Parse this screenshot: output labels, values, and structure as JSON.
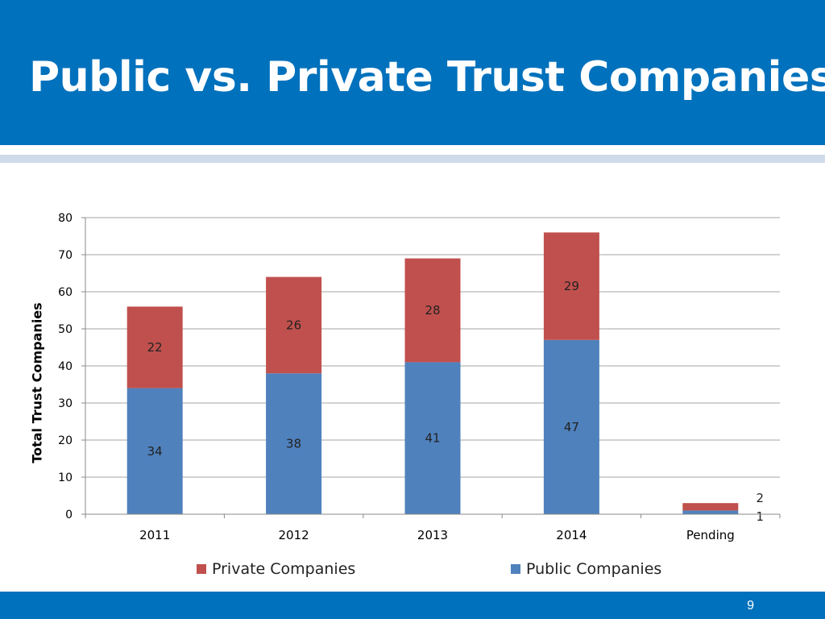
{
  "slide": {
    "title": "Public vs. Private Trust Companies",
    "page_number": "9"
  },
  "colors": {
    "header": "#0071bc",
    "private": "#c0504d",
    "public": "#4f81bd"
  },
  "chart_data": {
    "type": "bar",
    "stacked": true,
    "categories": [
      "2011",
      "2012",
      "2013",
      "2014",
      "Pending"
    ],
    "series": [
      {
        "name": "Public Companies",
        "values": [
          34,
          38,
          41,
          47,
          1
        ],
        "color": "#4f81bd"
      },
      {
        "name": "Private Companies",
        "values": [
          22,
          26,
          28,
          29,
          2
        ],
        "color": "#c0504d"
      }
    ],
    "ylabel": "Total Trust Companies",
    "ylim": [
      0,
      80
    ],
    "yticks": [
      0,
      10,
      20,
      30,
      40,
      50,
      60,
      70,
      80
    ],
    "grid": true,
    "legend": {
      "position": "bottom",
      "items": [
        "Private Companies",
        "Public Companies"
      ]
    }
  }
}
